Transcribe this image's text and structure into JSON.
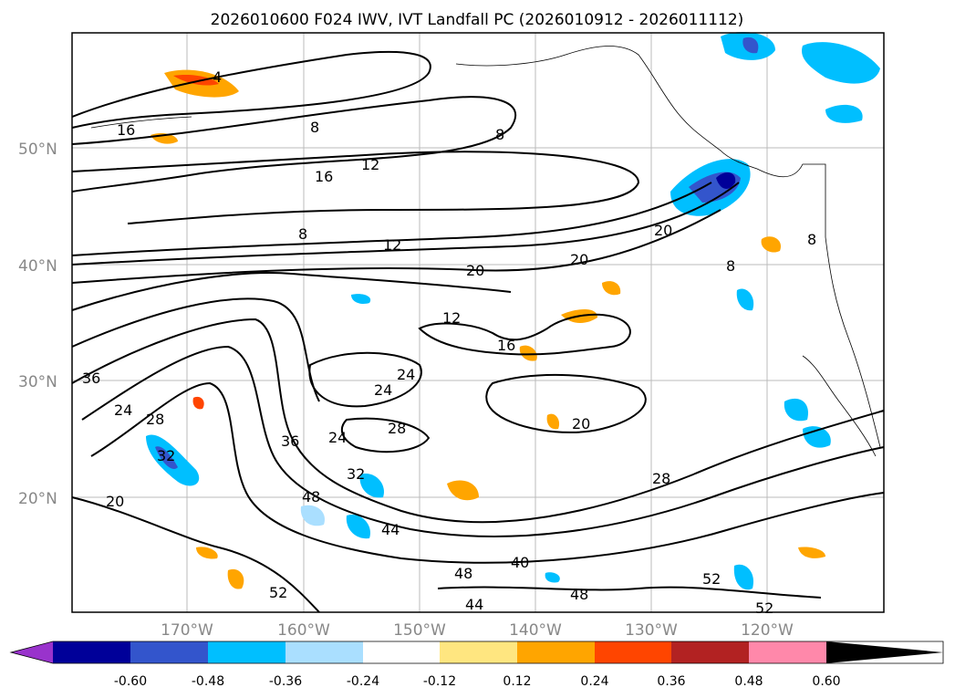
{
  "title": "2026010600 F024 IWV, IVT Landfall PC (2026010912 - 2026011112)",
  "lat_labels": [
    "50°N",
    "40°N",
    "30°N",
    "20°N"
  ],
  "lon_labels": [
    "170°W",
    "160°W",
    "150°W",
    "140°W",
    "130°W",
    "120°W"
  ],
  "contour_labels": [
    "4",
    "16",
    "8",
    "8",
    "16",
    "12",
    "8",
    "12",
    "20",
    "20",
    "12",
    "16",
    "24",
    "24",
    "28",
    "36",
    "24",
    "28",
    "32",
    "20",
    "36",
    "24",
    "32",
    "48",
    "44",
    "40",
    "48",
    "48",
    "44",
    "52",
    "20",
    "28",
    "52",
    "52",
    "20",
    "8",
    "8"
  ],
  "colorbar": {
    "ticks": [
      "-0.60",
      "-0.48",
      "-0.36",
      "-0.24",
      "-0.12",
      "0.12",
      "0.24",
      "0.36",
      "0.48",
      "0.60"
    ],
    "colors": [
      "#9933cc",
      "#000099",
      "#3355cc",
      "#00bfff",
      "#aadfff",
      "#ffffff",
      "#ffe680",
      "#ffa500",
      "#ff4500",
      "#b22222",
      "#ff88aa"
    ]
  }
}
